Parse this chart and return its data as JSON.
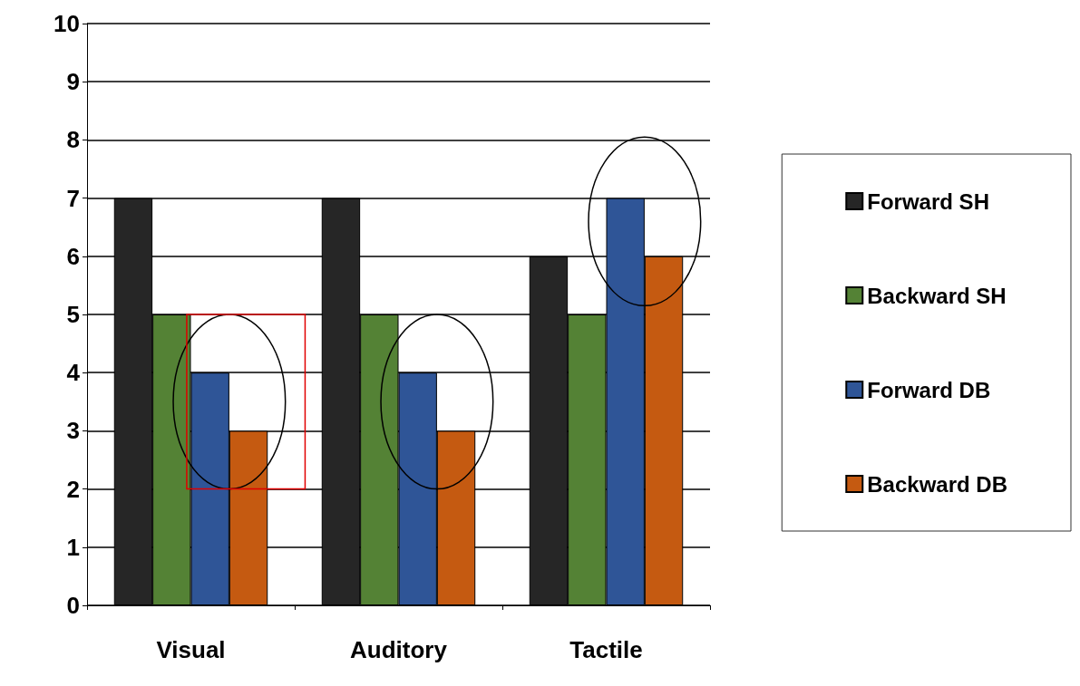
{
  "chart_data": {
    "type": "bar",
    "categories": [
      "Visual",
      "Auditory",
      "Tactile"
    ],
    "series": [
      {
        "name": "Forward SH",
        "color": "#262626",
        "values": [
          7,
          7,
          6
        ]
      },
      {
        "name": "Backward SH",
        "color": "#548235",
        "values": [
          5,
          5,
          5
        ]
      },
      {
        "name": "Forward DB",
        "color": "#2f5597",
        "values": [
          4,
          4,
          7
        ]
      },
      {
        "name": "Backward DB",
        "color": "#c55a11",
        "values": [
          3,
          3,
          6
        ]
      }
    ],
    "ylim": [
      0,
      10
    ],
    "yticks": [
      0,
      1,
      2,
      3,
      4,
      5,
      6,
      7,
      8,
      9,
      10
    ],
    "grid": "y",
    "legend": "right"
  }
}
